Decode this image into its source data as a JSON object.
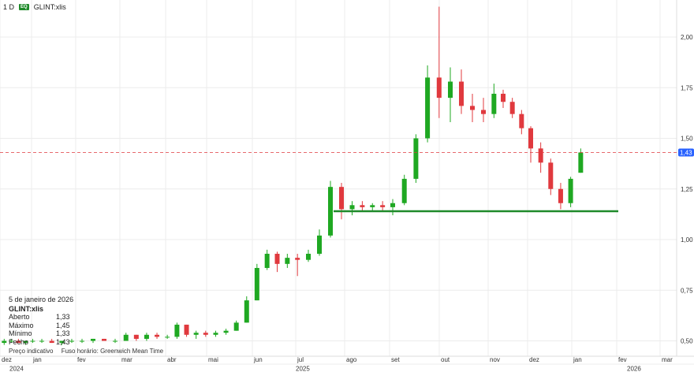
{
  "header": {
    "interval": "1 D",
    "badge": "EQ",
    "symbol": "GLINT:xlis"
  },
  "legend": {
    "date": "5 de janeiro de 2026",
    "symbol": "GLINT:xlis",
    "rows": [
      {
        "label": "Aberto",
        "value": "1,33"
      },
      {
        "label": "Máximo",
        "value": "1,45"
      },
      {
        "label": "Mínimo",
        "value": "1,33"
      },
      {
        "label": "Fecho",
        "value": "1,43"
      }
    ]
  },
  "footer": {
    "price_type": "Preço indicativo",
    "timezone": "Fuso horário: Greenwich Mean Time"
  },
  "colors": {
    "up": "#1fa822",
    "down": "#e0393e",
    "trendline": "#1f8a2a",
    "last_price": "#2962ff",
    "grid": "#ececec"
  },
  "chart_data": {
    "type": "candlestick",
    "y_ticks": [
      "2,00",
      "1,75",
      "1,50",
      "1,25",
      "1,00",
      "0,75",
      "0,50"
    ],
    "y_tick_values": [
      2.0,
      1.75,
      1.5,
      1.25,
      1.0,
      0.75,
      0.5
    ],
    "x_ticks": [
      "dez",
      "jan",
      "fev",
      "mar",
      "abr",
      "mai",
      "jun",
      "jul",
      "ago",
      "set",
      "out",
      "nov",
      "dez",
      "jan",
      "fev",
      "mar"
    ],
    "years": [
      "2024",
      "2025",
      "2026"
    ],
    "last_price": {
      "value": 1.43,
      "label": "1,43"
    },
    "trendline": {
      "from": "2025-07-28",
      "to": "2026-02-01",
      "value": 1.14
    },
    "grid": true,
    "candles": [
      [
        "2024-12-02",
        0.49,
        0.51,
        0.48,
        0.5
      ],
      [
        "2024-12-09",
        0.5,
        0.51,
        0.49,
        0.5
      ],
      [
        "2024-12-16",
        0.5,
        0.51,
        0.49,
        0.49
      ],
      [
        "2024-12-23",
        0.49,
        0.5,
        0.48,
        0.5
      ],
      [
        "2024-12-30",
        0.5,
        0.51,
        0.49,
        0.5
      ],
      [
        "2025-01-06",
        0.5,
        0.51,
        0.49,
        0.5
      ],
      [
        "2025-01-13",
        0.5,
        0.51,
        0.49,
        0.49
      ],
      [
        "2025-01-20",
        0.49,
        0.5,
        0.48,
        0.5
      ],
      [
        "2025-01-27",
        0.5,
        0.51,
        0.49,
        0.5
      ],
      [
        "2025-02-03",
        0.5,
        0.51,
        0.49,
        0.5
      ],
      [
        "2025-02-10",
        0.5,
        0.51,
        0.49,
        0.51
      ],
      [
        "2025-02-17",
        0.51,
        0.51,
        0.5,
        0.5
      ],
      [
        "2025-02-24",
        0.5,
        0.51,
        0.49,
        0.5
      ],
      [
        "2025-03-03",
        0.5,
        0.54,
        0.5,
        0.53
      ],
      [
        "2025-03-10",
        0.53,
        0.53,
        0.5,
        0.51
      ],
      [
        "2025-03-17",
        0.51,
        0.54,
        0.5,
        0.53
      ],
      [
        "2025-03-24",
        0.53,
        0.54,
        0.51,
        0.52
      ],
      [
        "2025-03-31",
        0.52,
        0.53,
        0.51,
        0.52
      ],
      [
        "2025-04-07",
        0.52,
        0.59,
        0.51,
        0.58
      ],
      [
        "2025-04-14",
        0.58,
        0.58,
        0.52,
        0.53
      ],
      [
        "2025-04-21",
        0.53,
        0.55,
        0.51,
        0.54
      ],
      [
        "2025-04-28",
        0.54,
        0.55,
        0.52,
        0.53
      ],
      [
        "2025-05-05",
        0.53,
        0.55,
        0.52,
        0.54
      ],
      [
        "2025-05-12",
        0.54,
        0.56,
        0.53,
        0.55
      ],
      [
        "2025-05-19",
        0.55,
        0.6,
        0.55,
        0.59
      ],
      [
        "2025-05-26",
        0.59,
        0.72,
        0.59,
        0.7
      ],
      [
        "2025-06-02",
        0.7,
        0.88,
        0.7,
        0.86
      ],
      [
        "2025-06-09",
        0.86,
        0.95,
        0.85,
        0.93
      ],
      [
        "2025-06-16",
        0.93,
        0.94,
        0.84,
        0.88
      ],
      [
        "2025-06-23",
        0.88,
        0.93,
        0.86,
        0.91
      ],
      [
        "2025-06-30",
        0.91,
        0.93,
        0.82,
        0.9
      ],
      [
        "2025-07-07",
        0.9,
        0.95,
        0.89,
        0.93
      ],
      [
        "2025-07-14",
        0.93,
        1.05,
        0.92,
        1.02
      ],
      [
        "2025-07-21",
        1.02,
        1.29,
        1.01,
        1.26
      ],
      [
        "2025-07-28",
        1.26,
        1.28,
        1.1,
        1.15
      ],
      [
        "2025-08-04",
        1.15,
        1.19,
        1.12,
        1.17
      ],
      [
        "2025-08-11",
        1.17,
        1.19,
        1.14,
        1.16
      ],
      [
        "2025-08-18",
        1.16,
        1.18,
        1.14,
        1.17
      ],
      [
        "2025-08-25",
        1.17,
        1.19,
        1.14,
        1.16
      ],
      [
        "2025-09-01",
        1.16,
        1.2,
        1.12,
        1.18
      ],
      [
        "2025-09-08",
        1.18,
        1.32,
        1.17,
        1.3
      ],
      [
        "2025-09-15",
        1.3,
        1.52,
        1.28,
        1.5
      ],
      [
        "2025-09-22",
        1.5,
        1.86,
        1.48,
        1.8
      ],
      [
        "2025-09-29",
        1.8,
        2.15,
        1.6,
        1.7
      ],
      [
        "2025-10-06",
        1.7,
        1.85,
        1.58,
        1.78
      ],
      [
        "2025-10-13",
        1.78,
        1.84,
        1.62,
        1.66
      ],
      [
        "2025-10-20",
        1.66,
        1.72,
        1.58,
        1.64
      ],
      [
        "2025-10-27",
        1.64,
        1.7,
        1.58,
        1.62
      ],
      [
        "2025-11-03",
        1.62,
        1.77,
        1.6,
        1.72
      ],
      [
        "2025-11-10",
        1.72,
        1.74,
        1.65,
        1.68
      ],
      [
        "2025-11-17",
        1.68,
        1.7,
        1.6,
        1.62
      ],
      [
        "2025-11-24",
        1.62,
        1.64,
        1.52,
        1.55
      ],
      [
        "2025-12-01",
        1.55,
        1.56,
        1.38,
        1.45
      ],
      [
        "2025-12-08",
        1.45,
        1.48,
        1.33,
        1.38
      ],
      [
        "2025-12-15",
        1.38,
        1.4,
        1.22,
        1.25
      ],
      [
        "2025-12-22",
        1.25,
        1.28,
        1.15,
        1.18
      ],
      [
        "2025-12-29",
        1.18,
        1.31,
        1.16,
        1.3
      ],
      [
        "2026-01-05",
        1.33,
        1.45,
        1.33,
        1.43
      ]
    ]
  }
}
